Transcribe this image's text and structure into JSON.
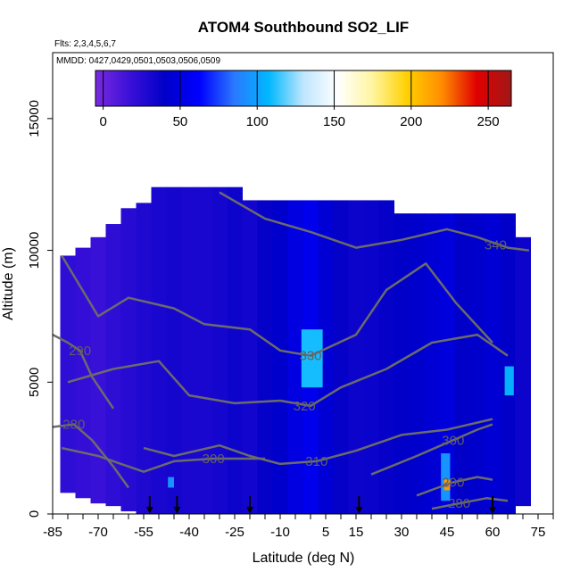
{
  "chart_data": {
    "type": "heatmap",
    "title": "ATOM4 Southbound SO2_LIF",
    "flights_note": "Flts: 2,3,4,5,6,7",
    "dates_note": "MMDD: 0427,0429,0501,0503,0506,0509",
    "xlabel": "Latitude (deg N)",
    "ylabel": "Altitude (m)",
    "xlim": [
      -85,
      80
    ],
    "ylim": [
      0,
      17500
    ],
    "x_ticks": [
      -85,
      -70,
      -55,
      -40,
      -25,
      -10,
      5,
      15,
      30,
      45,
      60,
      75
    ],
    "y_ticks": [
      0,
      5000,
      10000,
      15000
    ],
    "colorbar": {
      "range": [
        -5,
        265
      ],
      "ticks": [
        0,
        50,
        100,
        150,
        200,
        250
      ],
      "colors": [
        "#7a2ae0",
        "#3a10d8",
        "#0000c8",
        "#0000ff",
        "#2a78ff",
        "#00b8ff",
        "#bfe6ff",
        "#ffffff",
        "#fff5a0",
        "#ffd000",
        "#ff8c00",
        "#e00000",
        "#a01818"
      ]
    },
    "data_columns": [
      {
        "lat": -80,
        "top": 9800,
        "bottom": 800,
        "value": 22
      },
      {
        "lat": -75,
        "top": 10100,
        "bottom": 600,
        "value": 20
      },
      {
        "lat": -70,
        "top": 10500,
        "bottom": 400,
        "value": 18
      },
      {
        "lat": -65,
        "top": 11000,
        "bottom": 300,
        "value": 22
      },
      {
        "lat": -60,
        "top": 11600,
        "bottom": 100,
        "value": 25
      },
      {
        "lat": -55,
        "top": 11800,
        "bottom": 0,
        "value": 28
      },
      {
        "lat": -50,
        "top": 12400,
        "bottom": 0,
        "value": 30
      },
      {
        "lat": -45,
        "top": 12400,
        "bottom": 0,
        "value": 32
      },
      {
        "lat": -40,
        "top": 12400,
        "bottom": 0,
        "value": 30
      },
      {
        "lat": -35,
        "top": 12400,
        "bottom": 0,
        "value": 30
      },
      {
        "lat": -30,
        "top": 12400,
        "bottom": 0,
        "value": 32
      },
      {
        "lat": -25,
        "top": 12400,
        "bottom": 0,
        "value": 35
      },
      {
        "lat": -20,
        "top": 11900,
        "bottom": 0,
        "value": 33
      },
      {
        "lat": -15,
        "top": 11900,
        "bottom": 0,
        "value": 38
      },
      {
        "lat": -10,
        "top": 11900,
        "bottom": 0,
        "value": 42
      },
      {
        "lat": -5,
        "top": 11900,
        "bottom": 0,
        "value": 50
      },
      {
        "lat": 0,
        "top": 11900,
        "bottom": 0,
        "value": 55
      },
      {
        "lat": 5,
        "top": 11900,
        "bottom": 0,
        "value": 45
      },
      {
        "lat": 10,
        "top": 11900,
        "bottom": 0,
        "value": 38
      },
      {
        "lat": 15,
        "top": 11900,
        "bottom": 0,
        "value": 35
      },
      {
        "lat": 20,
        "top": 11900,
        "bottom": 0,
        "value": 36
      },
      {
        "lat": 25,
        "top": 11900,
        "bottom": 0,
        "value": 38
      },
      {
        "lat": 30,
        "top": 11400,
        "bottom": 0,
        "value": 40
      },
      {
        "lat": 35,
        "top": 11400,
        "bottom": 0,
        "value": 42
      },
      {
        "lat": 40,
        "top": 11400,
        "bottom": 0,
        "value": 45
      },
      {
        "lat": 45,
        "top": 11400,
        "bottom": 0,
        "value": 48
      },
      {
        "lat": 50,
        "top": 11400,
        "bottom": 0,
        "value": 40
      },
      {
        "lat": 55,
        "top": 11400,
        "bottom": 0,
        "value": 42
      },
      {
        "lat": 60,
        "top": 11400,
        "bottom": 0,
        "value": 45
      },
      {
        "lat": 65,
        "top": 11400,
        "bottom": 0,
        "value": 40
      },
      {
        "lat": 70,
        "top": 10500,
        "bottom": 300,
        "value": 35
      }
    ],
    "hotspots": [
      {
        "lat_min": -3,
        "lat_max": 4,
        "alt_min": 4800,
        "alt_max": 7000,
        "value": 110
      },
      {
        "lat_min": 43,
        "lat_max": 46,
        "alt_min": 500,
        "alt_max": 2300,
        "value": 95
      },
      {
        "lat_min": 44,
        "lat_max": 46,
        "alt_min": 900,
        "alt_max": 1300,
        "value": 215
      },
      {
        "lat_min": 64,
        "lat_max": 67,
        "alt_min": 4500,
        "alt_max": 5600,
        "value": 105
      },
      {
        "lat_min": -47,
        "lat_max": -45,
        "alt_min": 1000,
        "alt_max": 1400,
        "value": 95
      }
    ],
    "contours": [
      {
        "level": "340",
        "label_lat": 61,
        "label_alt": 10200,
        "points": [
          [
            -30,
            12200
          ],
          [
            -15,
            11200
          ],
          [
            0,
            10700
          ],
          [
            15,
            10100
          ],
          [
            30,
            10400
          ],
          [
            45,
            10800
          ],
          [
            55,
            10500
          ],
          [
            65,
            10100
          ],
          [
            72,
            10000
          ]
        ]
      },
      {
        "level": "330",
        "label_lat": 0,
        "label_alt": 6000,
        "points": [
          [
            -82,
            9800
          ],
          [
            -70,
            7500
          ],
          [
            -60,
            8200
          ],
          [
            -45,
            7800
          ],
          [
            -35,
            7200
          ],
          [
            -20,
            7000
          ],
          [
            -10,
            6200
          ],
          [
            0,
            6000
          ],
          [
            15,
            6800
          ],
          [
            25,
            8500
          ],
          [
            38,
            9500
          ],
          [
            48,
            8000
          ],
          [
            60,
            6500
          ]
        ]
      },
      {
        "level": "320",
        "label_lat": -2,
        "label_alt": 4100,
        "points": [
          [
            -80,
            5000
          ],
          [
            -65,
            5500
          ],
          [
            -50,
            5800
          ],
          [
            -40,
            4500
          ],
          [
            -25,
            4200
          ],
          [
            -10,
            4300
          ],
          [
            0,
            4100
          ],
          [
            10,
            4800
          ],
          [
            25,
            5500
          ],
          [
            40,
            6500
          ],
          [
            55,
            6800
          ],
          [
            65,
            6000
          ]
        ]
      },
      {
        "level": "310",
        "label_lat": 2,
        "label_alt": 2000,
        "points": [
          [
            -55,
            2500
          ],
          [
            -45,
            2200
          ],
          [
            -30,
            2600
          ],
          [
            -20,
            2200
          ],
          [
            -10,
            1900
          ],
          [
            2,
            2000
          ],
          [
            15,
            2400
          ],
          [
            30,
            3000
          ],
          [
            45,
            3200
          ],
          [
            60,
            3600
          ]
        ]
      },
      {
        "level": "300",
        "label_lat": -32,
        "label_alt": 2100,
        "points": [
          [
            -82,
            2500
          ],
          [
            -70,
            2200
          ],
          [
            -55,
            1600
          ],
          [
            -45,
            2000
          ],
          [
            -32,
            2100
          ],
          [
            -15,
            2100
          ]
        ]
      },
      {
        "level": "300",
        "label_lat": 47,
        "label_alt": 2800,
        "points": [
          [
            20,
            1500
          ],
          [
            35,
            2200
          ],
          [
            47,
            2800
          ],
          [
            55,
            3200
          ],
          [
            60,
            3400
          ]
        ]
      },
      {
        "level": "290",
        "label_lat": -76,
        "label_alt": 6200,
        "points": [
          [
            -85,
            6800
          ],
          [
            -80,
            6500
          ],
          [
            -76,
            6200
          ],
          [
            -72,
            5200
          ],
          [
            -65,
            4000
          ]
        ]
      },
      {
        "level": "290",
        "label_lat": 47,
        "label_alt": 1200,
        "points": [
          [
            35,
            700
          ],
          [
            42,
            1000
          ],
          [
            47,
            1200
          ],
          [
            55,
            1400
          ],
          [
            60,
            1300
          ]
        ]
      },
      {
        "level": "280",
        "label_lat": -78,
        "label_alt": 3400,
        "points": [
          [
            -85,
            3300
          ],
          [
            -78,
            3400
          ],
          [
            -72,
            2800
          ],
          [
            -65,
            1800
          ],
          [
            -60,
            1000
          ]
        ]
      },
      {
        "level": "280",
        "label_lat": 49,
        "label_alt": 400,
        "points": [
          [
            40,
            200
          ],
          [
            49,
            400
          ],
          [
            58,
            600
          ],
          [
            65,
            500
          ]
        ]
      }
    ],
    "arrow_lats": [
      -53,
      -44,
      -20,
      16,
      60
    ]
  }
}
